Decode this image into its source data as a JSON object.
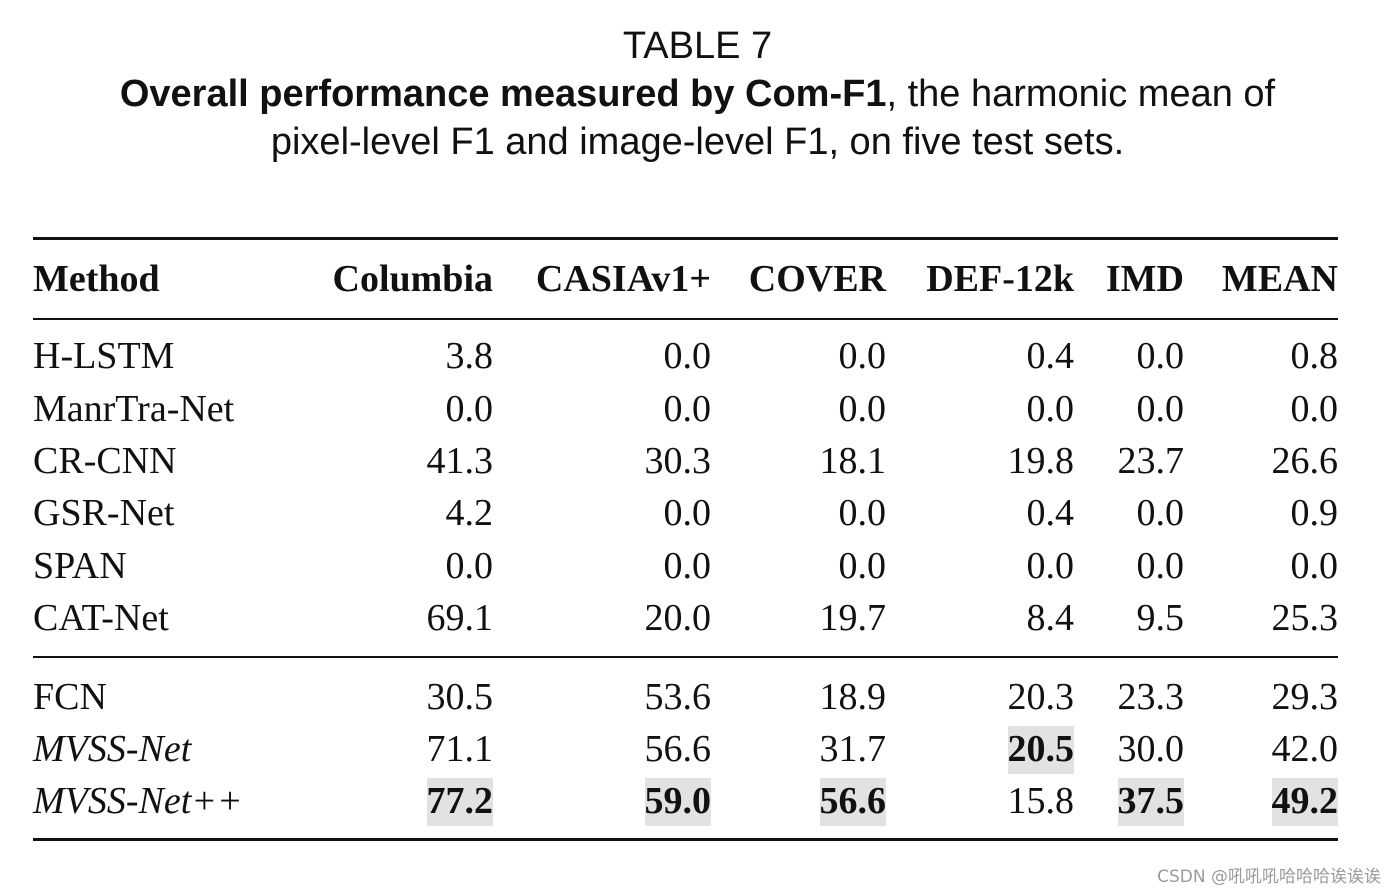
{
  "caption": {
    "table_label": "TABLE 7",
    "bold_part": "Overall performance measured by Com-F1",
    "rest_line1": ", the harmonic mean of",
    "line2": "pixel-level F1 and image-level F1, on five test sets."
  },
  "table": {
    "headers": [
      "Method",
      "Columbia",
      "CASIAv1+",
      "COVER",
      "DEF-12k",
      "IMD",
      "MEAN"
    ],
    "group1": [
      {
        "method": "H-LSTM",
        "values": [
          "3.8",
          "0.0",
          "0.0",
          "0.4",
          "0.0",
          "0.8"
        ]
      },
      {
        "method": "ManrTra-Net",
        "values": [
          "0.0",
          "0.0",
          "0.0",
          "0.0",
          "0.0",
          "0.0"
        ]
      },
      {
        "method": "CR-CNN",
        "values": [
          "41.3",
          "30.3",
          "18.1",
          "19.8",
          "23.7",
          "26.6"
        ]
      },
      {
        "method": "GSR-Net",
        "values": [
          "4.2",
          "0.0",
          "0.0",
          "0.4",
          "0.0",
          "0.9"
        ]
      },
      {
        "method": "SPAN",
        "values": [
          "0.0",
          "0.0",
          "0.0",
          "0.0",
          "0.0",
          "0.0"
        ]
      },
      {
        "method": "CAT-Net",
        "values": [
          "69.1",
          "20.0",
          "19.7",
          "8.4",
          "9.5",
          "25.3"
        ]
      }
    ],
    "group2": [
      {
        "method": "FCN",
        "values": [
          "30.5",
          "53.6",
          "18.9",
          "20.3",
          "23.3",
          "29.3"
        ]
      },
      {
        "method": "MVSS-Net",
        "values": [
          "71.1",
          "56.6",
          "31.7",
          "20.5",
          "30.0",
          "42.0"
        ]
      },
      {
        "method": "MVSS-Net++",
        "values": [
          "77.2",
          "59.0",
          "56.6",
          "15.8",
          "37.5",
          "49.2"
        ]
      }
    ]
  },
  "watermark": "CSDN @吼吼吼哈哈哈诶诶诶"
}
